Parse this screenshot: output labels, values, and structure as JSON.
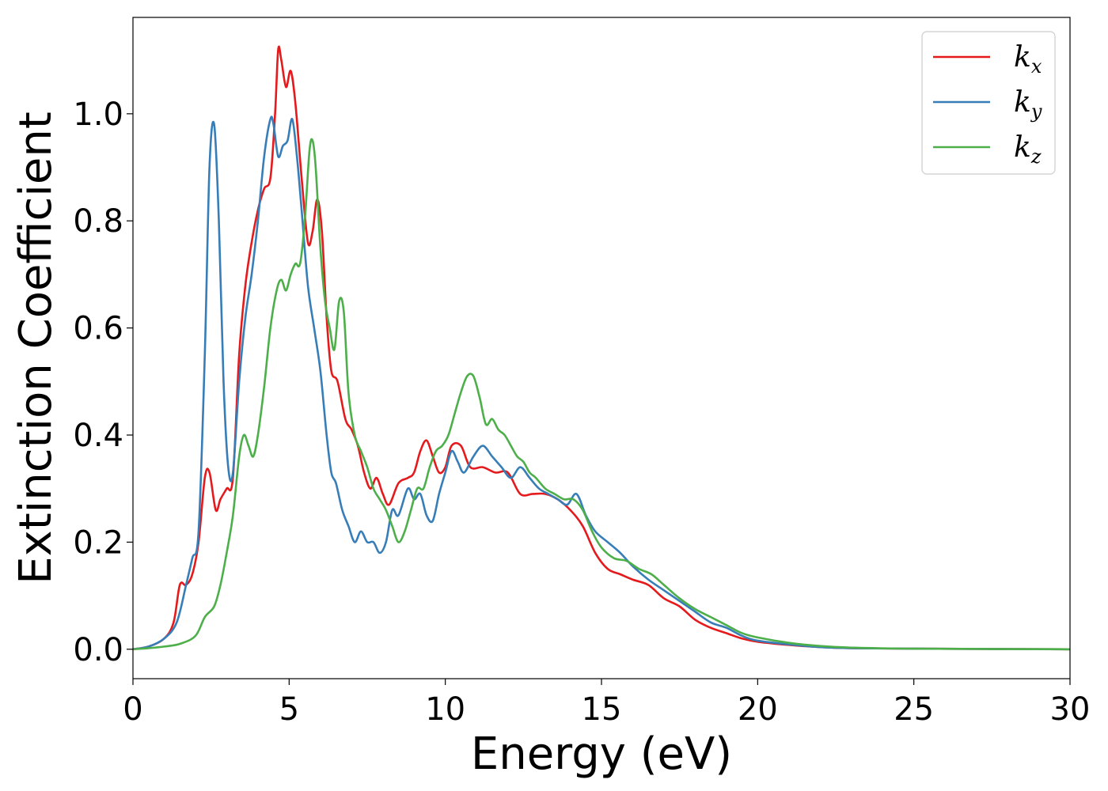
{
  "chart_data": {
    "type": "line",
    "title": "",
    "xlabel": "Energy (eV)",
    "ylabel": "Extinction Coefficient",
    "xlim": [
      0,
      30
    ],
    "ylim": [
      -0.055,
      1.18
    ],
    "xticks": [
      0,
      5,
      10,
      15,
      20,
      25,
      30
    ],
    "xtick_labels": [
      "0",
      "5",
      "10",
      "15",
      "20",
      "25",
      "30"
    ],
    "yticks": [
      0.0,
      0.2,
      0.4,
      0.6,
      0.8,
      1.0
    ],
    "ytick_labels": [
      "0.0",
      "0.2",
      "0.4",
      "0.6",
      "0.8",
      "1.0"
    ],
    "grid": false,
    "legend_position": "top-right",
    "series": [
      {
        "name": "k_x",
        "label_base": "k",
        "label_sub": "x",
        "color": "#e41a1c",
        "points": [
          [
            0,
            0
          ],
          [
            0.5,
            0.005
          ],
          [
            1.0,
            0.02
          ],
          [
            1.3,
            0.05
          ],
          [
            1.5,
            0.12
          ],
          [
            1.7,
            0.12
          ],
          [
            1.9,
            0.14
          ],
          [
            2.1,
            0.2
          ],
          [
            2.3,
            0.32
          ],
          [
            2.45,
            0.33
          ],
          [
            2.65,
            0.26
          ],
          [
            2.8,
            0.28
          ],
          [
            3.0,
            0.3
          ],
          [
            3.2,
            0.32
          ],
          [
            3.4,
            0.55
          ],
          [
            3.6,
            0.68
          ],
          [
            3.8,
            0.76
          ],
          [
            4.0,
            0.82
          ],
          [
            4.2,
            0.86
          ],
          [
            4.4,
            0.88
          ],
          [
            4.55,
            1.0
          ],
          [
            4.65,
            1.12
          ],
          [
            4.75,
            1.1
          ],
          [
            4.9,
            1.05
          ],
          [
            5.05,
            1.08
          ],
          [
            5.2,
            1.02
          ],
          [
            5.4,
            0.88
          ],
          [
            5.6,
            0.76
          ],
          [
            5.75,
            0.78
          ],
          [
            5.9,
            0.84
          ],
          [
            6.05,
            0.78
          ],
          [
            6.2,
            0.62
          ],
          [
            6.35,
            0.52
          ],
          [
            6.55,
            0.5
          ],
          [
            6.8,
            0.43
          ],
          [
            7.0,
            0.41
          ],
          [
            7.2,
            0.38
          ],
          [
            7.4,
            0.33
          ],
          [
            7.6,
            0.3
          ],
          [
            7.8,
            0.32
          ],
          [
            8.0,
            0.29
          ],
          [
            8.2,
            0.27
          ],
          [
            8.5,
            0.31
          ],
          [
            8.8,
            0.32
          ],
          [
            9.0,
            0.33
          ],
          [
            9.2,
            0.37
          ],
          [
            9.4,
            0.39
          ],
          [
            9.6,
            0.36
          ],
          [
            9.8,
            0.33
          ],
          [
            10.0,
            0.34
          ],
          [
            10.2,
            0.38
          ],
          [
            10.5,
            0.38
          ],
          [
            10.8,
            0.34
          ],
          [
            11.2,
            0.34
          ],
          [
            11.6,
            0.33
          ],
          [
            12.0,
            0.33
          ],
          [
            12.4,
            0.29
          ],
          [
            12.8,
            0.29
          ],
          [
            13.2,
            0.29
          ],
          [
            13.6,
            0.28
          ],
          [
            14.0,
            0.26
          ],
          [
            14.4,
            0.23
          ],
          [
            14.8,
            0.18
          ],
          [
            15.2,
            0.15
          ],
          [
            15.6,
            0.14
          ],
          [
            16.0,
            0.13
          ],
          [
            16.5,
            0.12
          ],
          [
            17.0,
            0.095
          ],
          [
            17.5,
            0.08
          ],
          [
            18.0,
            0.055
          ],
          [
            18.5,
            0.04
          ],
          [
            19.0,
            0.03
          ],
          [
            19.5,
            0.02
          ],
          [
            20.0,
            0.014
          ],
          [
            21.0,
            0.008
          ],
          [
            22.0,
            0.004
          ],
          [
            23.0,
            0.002
          ],
          [
            25.0,
            0.001
          ],
          [
            30.0,
            0.0
          ]
        ]
      },
      {
        "name": "k_y",
        "label_base": "k",
        "label_sub": "y",
        "color": "#377eb8",
        "points": [
          [
            0,
            0
          ],
          [
            0.5,
            0.005
          ],
          [
            1.0,
            0.02
          ],
          [
            1.4,
            0.05
          ],
          [
            1.7,
            0.12
          ],
          [
            1.9,
            0.17
          ],
          [
            2.1,
            0.22
          ],
          [
            2.3,
            0.55
          ],
          [
            2.45,
            0.9
          ],
          [
            2.6,
            0.98
          ],
          [
            2.75,
            0.8
          ],
          [
            2.9,
            0.5
          ],
          [
            3.05,
            0.34
          ],
          [
            3.2,
            0.33
          ],
          [
            3.4,
            0.5
          ],
          [
            3.6,
            0.62
          ],
          [
            3.8,
            0.7
          ],
          [
            4.0,
            0.8
          ],
          [
            4.2,
            0.92
          ],
          [
            4.4,
            0.99
          ],
          [
            4.5,
            0.98
          ],
          [
            4.65,
            0.92
          ],
          [
            4.8,
            0.94
          ],
          [
            4.95,
            0.95
          ],
          [
            5.1,
            0.99
          ],
          [
            5.25,
            0.92
          ],
          [
            5.4,
            0.82
          ],
          [
            5.6,
            0.68
          ],
          [
            5.8,
            0.6
          ],
          [
            6.0,
            0.52
          ],
          [
            6.2,
            0.4
          ],
          [
            6.35,
            0.33
          ],
          [
            6.5,
            0.31
          ],
          [
            6.7,
            0.26
          ],
          [
            6.9,
            0.23
          ],
          [
            7.1,
            0.2
          ],
          [
            7.3,
            0.22
          ],
          [
            7.5,
            0.2
          ],
          [
            7.7,
            0.2
          ],
          [
            7.9,
            0.18
          ],
          [
            8.1,
            0.2
          ],
          [
            8.3,
            0.26
          ],
          [
            8.5,
            0.25
          ],
          [
            8.8,
            0.3
          ],
          [
            9.0,
            0.28
          ],
          [
            9.2,
            0.29
          ],
          [
            9.4,
            0.25
          ],
          [
            9.6,
            0.24
          ],
          [
            9.8,
            0.29
          ],
          [
            10.0,
            0.33
          ],
          [
            10.2,
            0.37
          ],
          [
            10.4,
            0.35
          ],
          [
            10.6,
            0.33
          ],
          [
            10.9,
            0.36
          ],
          [
            11.2,
            0.38
          ],
          [
            11.5,
            0.36
          ],
          [
            11.8,
            0.34
          ],
          [
            12.1,
            0.32
          ],
          [
            12.4,
            0.34
          ],
          [
            12.7,
            0.32
          ],
          [
            13.0,
            0.3
          ],
          [
            13.3,
            0.29
          ],
          [
            13.6,
            0.28
          ],
          [
            13.9,
            0.27
          ],
          [
            14.2,
            0.29
          ],
          [
            14.5,
            0.25
          ],
          [
            14.8,
            0.22
          ],
          [
            15.2,
            0.2
          ],
          [
            15.6,
            0.18
          ],
          [
            16.0,
            0.155
          ],
          [
            16.5,
            0.13
          ],
          [
            17.0,
            0.11
          ],
          [
            17.5,
            0.09
          ],
          [
            18.0,
            0.07
          ],
          [
            18.5,
            0.05
          ],
          [
            19.0,
            0.04
          ],
          [
            19.5,
            0.025
          ],
          [
            20.0,
            0.016
          ],
          [
            21.0,
            0.009
          ],
          [
            22.0,
            0.004
          ],
          [
            23.0,
            0.002
          ],
          [
            25.0,
            0.001
          ],
          [
            30.0,
            0.0
          ]
        ]
      },
      {
        "name": "k_z",
        "label_base": "k",
        "label_sub": "z",
        "color": "#4daf4a",
        "points": [
          [
            0,
            0
          ],
          [
            0.5,
            0.002
          ],
          [
            1.0,
            0.005
          ],
          [
            1.5,
            0.01
          ],
          [
            2.0,
            0.025
          ],
          [
            2.3,
            0.06
          ],
          [
            2.6,
            0.08
          ],
          [
            2.8,
            0.12
          ],
          [
            3.0,
            0.18
          ],
          [
            3.2,
            0.25
          ],
          [
            3.4,
            0.36
          ],
          [
            3.55,
            0.4
          ],
          [
            3.7,
            0.38
          ],
          [
            3.85,
            0.36
          ],
          [
            4.0,
            0.4
          ],
          [
            4.2,
            0.49
          ],
          [
            4.4,
            0.6
          ],
          [
            4.6,
            0.67
          ],
          [
            4.75,
            0.69
          ],
          [
            4.9,
            0.67
          ],
          [
            5.05,
            0.7
          ],
          [
            5.2,
            0.72
          ],
          [
            5.35,
            0.72
          ],
          [
            5.5,
            0.8
          ],
          [
            5.65,
            0.93
          ],
          [
            5.75,
            0.95
          ],
          [
            5.85,
            0.9
          ],
          [
            6.0,
            0.75
          ],
          [
            6.15,
            0.65
          ],
          [
            6.3,
            0.6
          ],
          [
            6.45,
            0.56
          ],
          [
            6.6,
            0.65
          ],
          [
            6.75,
            0.63
          ],
          [
            6.9,
            0.48
          ],
          [
            7.1,
            0.4
          ],
          [
            7.3,
            0.37
          ],
          [
            7.5,
            0.34
          ],
          [
            7.7,
            0.3
          ],
          [
            7.9,
            0.28
          ],
          [
            8.1,
            0.26
          ],
          [
            8.3,
            0.23
          ],
          [
            8.5,
            0.2
          ],
          [
            8.7,
            0.22
          ],
          [
            8.9,
            0.26
          ],
          [
            9.1,
            0.3
          ],
          [
            9.3,
            0.3
          ],
          [
            9.5,
            0.34
          ],
          [
            9.7,
            0.37
          ],
          [
            9.9,
            0.38
          ],
          [
            10.1,
            0.4
          ],
          [
            10.3,
            0.44
          ],
          [
            10.5,
            0.48
          ],
          [
            10.7,
            0.51
          ],
          [
            10.9,
            0.51
          ],
          [
            11.1,
            0.47
          ],
          [
            11.3,
            0.42
          ],
          [
            11.5,
            0.43
          ],
          [
            11.7,
            0.41
          ],
          [
            11.9,
            0.4
          ],
          [
            12.1,
            0.38
          ],
          [
            12.3,
            0.36
          ],
          [
            12.5,
            0.35
          ],
          [
            12.7,
            0.33
          ],
          [
            12.9,
            0.32
          ],
          [
            13.2,
            0.3
          ],
          [
            13.5,
            0.29
          ],
          [
            13.8,
            0.28
          ],
          [
            14.1,
            0.28
          ],
          [
            14.4,
            0.26
          ],
          [
            14.7,
            0.22
          ],
          [
            15.0,
            0.19
          ],
          [
            15.4,
            0.17
          ],
          [
            15.8,
            0.165
          ],
          [
            16.2,
            0.15
          ],
          [
            16.6,
            0.14
          ],
          [
            17.0,
            0.12
          ],
          [
            17.5,
            0.095
          ],
          [
            18.0,
            0.075
          ],
          [
            18.5,
            0.06
          ],
          [
            19.0,
            0.045
          ],
          [
            19.5,
            0.03
          ],
          [
            20.0,
            0.022
          ],
          [
            21.0,
            0.012
          ],
          [
            22.0,
            0.006
          ],
          [
            23.0,
            0.003
          ],
          [
            25.0,
            0.001
          ],
          [
            30.0,
            0.0
          ]
        ]
      }
    ]
  }
}
